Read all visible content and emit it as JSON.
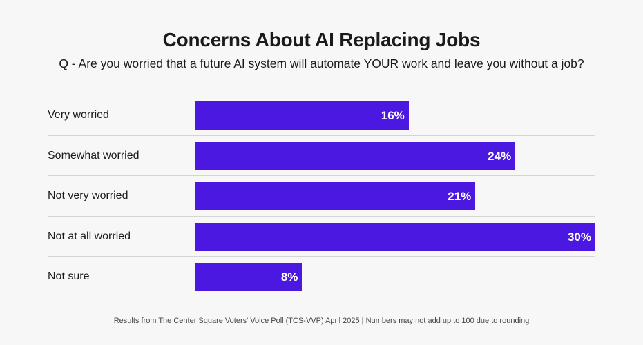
{
  "chart_data": {
    "type": "bar",
    "orientation": "horizontal",
    "title": "Concerns About AI Replacing Jobs",
    "subtitle": "Q - Are you worried that a future AI system will automate YOUR work and leave you without a job?",
    "categories": [
      "Very worried",
      "Somewhat worried",
      "Not very worried",
      "Not at all worried",
      "Not sure"
    ],
    "values": [
      16,
      24,
      21,
      30,
      8
    ],
    "value_labels": [
      "16%",
      "24%",
      "21%",
      "30%",
      "8%"
    ],
    "xlim": [
      0,
      30
    ],
    "xlabel": "",
    "ylabel": "",
    "grid": false,
    "bar_color": "#4a18e0",
    "footer": "Results from The Center Square Voters' Voice Poll (TCS-VVP) April 2025 | Numbers may not add up to 100 due to rounding"
  }
}
